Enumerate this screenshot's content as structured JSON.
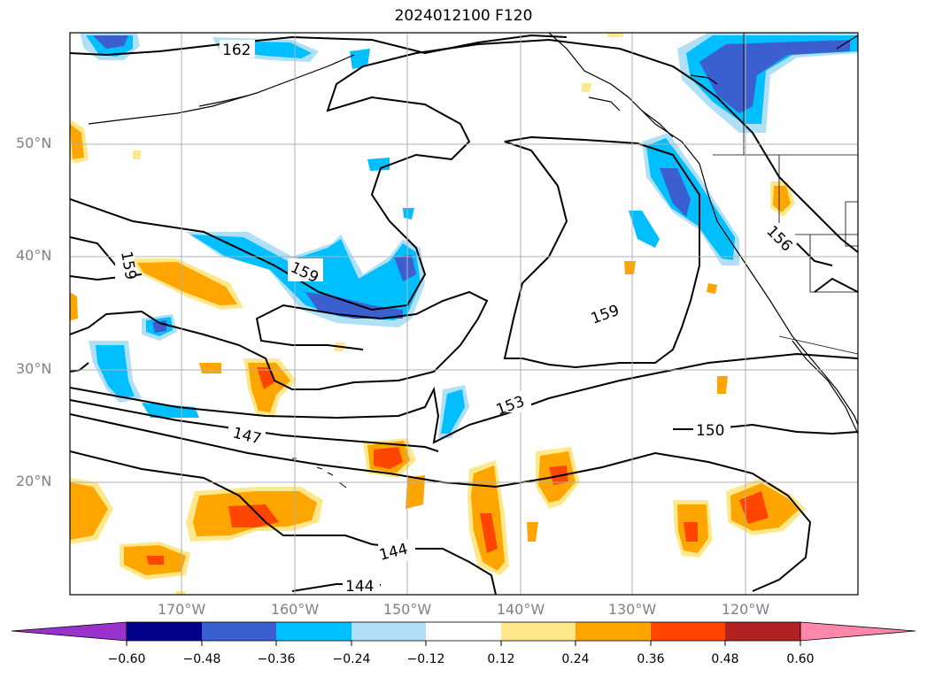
{
  "title": "2024012100 F120",
  "lat_labels": [
    "50°N",
    "40°N",
    "30°N",
    "20°N"
  ],
  "lon_labels": [
    "170°W",
    "160°W",
    "150°W",
    "140°W",
    "130°W",
    "120°W"
  ],
  "contour_labels": [
    "162",
    "159",
    "159",
    "159",
    "156",
    "153",
    "150",
    "147",
    "144",
    "144"
  ],
  "colorbar": {
    "ticks": [
      "−0.60",
      "−0.48",
      "−0.36",
      "−0.24",
      "−0.12",
      "0.12",
      "0.24",
      "0.36",
      "0.48",
      "0.60"
    ],
    "colors": [
      "#9932cc",
      "#00008b",
      "#3c5fd0",
      "#00bfff",
      "#afe0f8",
      "#ffffff",
      "#ffe88a",
      "#ffa500",
      "#ff4500",
      "#b22222",
      "#ff88aa"
    ]
  }
}
